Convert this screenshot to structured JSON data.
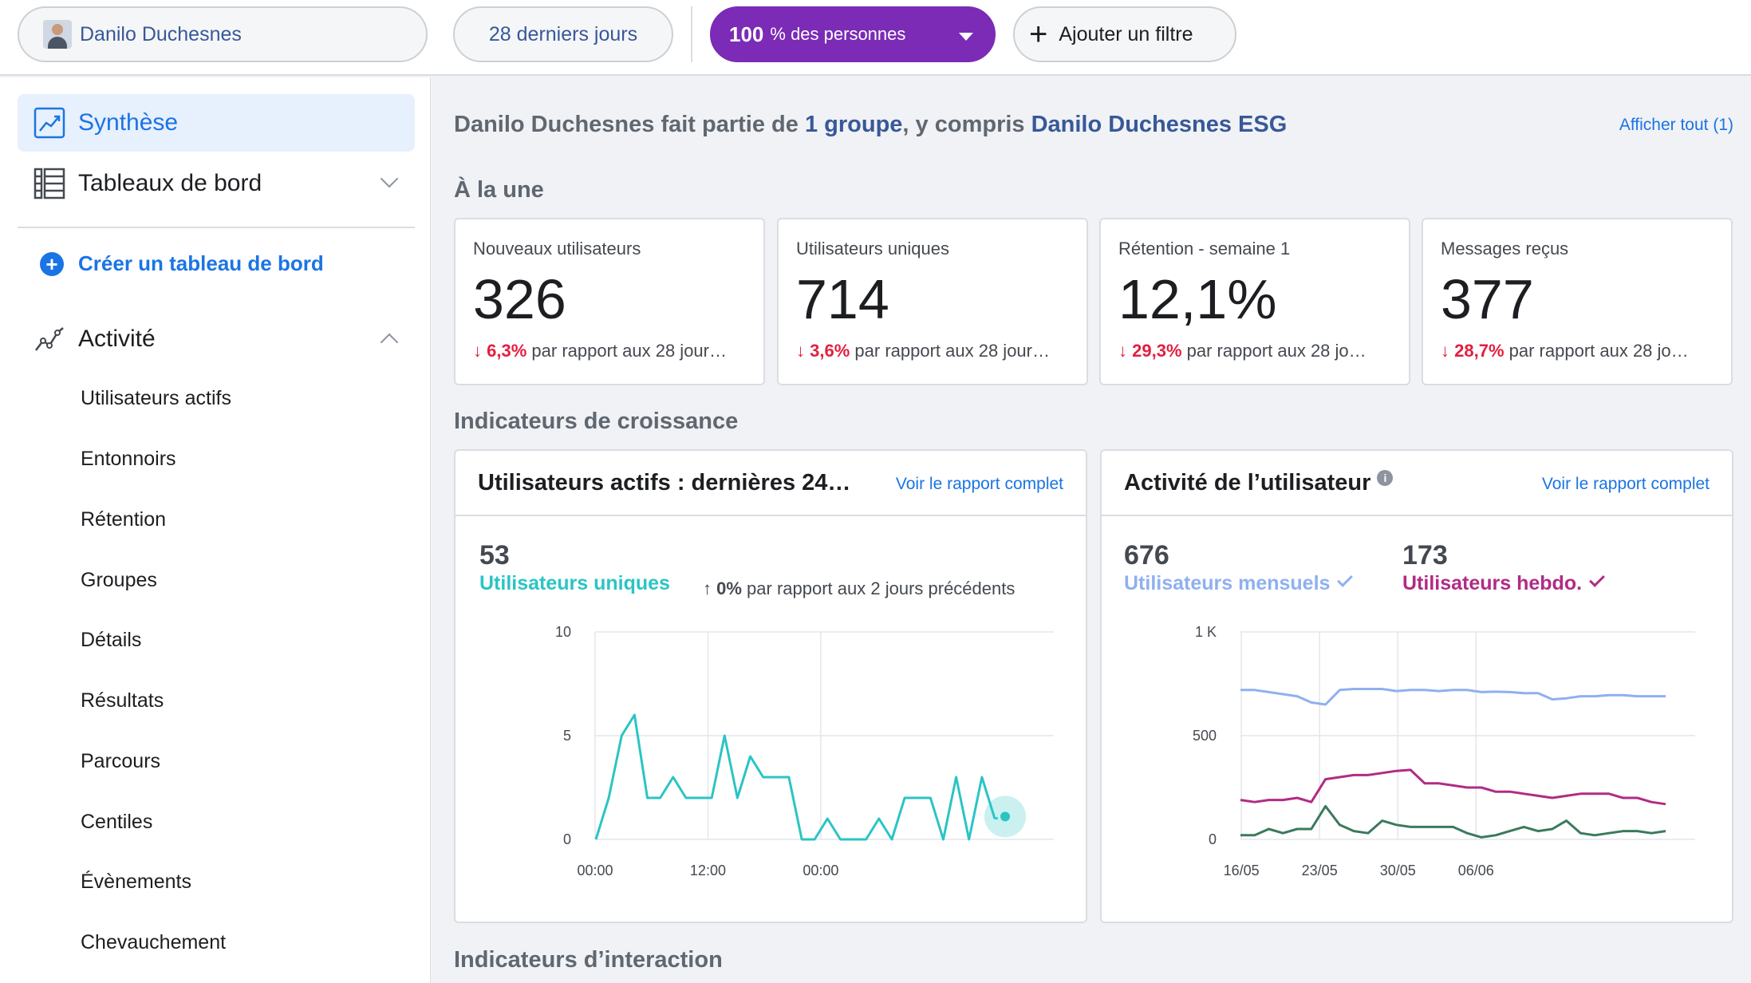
{
  "topbar": {
    "user_name": "Danilo Duchesnes",
    "date_range": "28 derniers jours",
    "people_pct": "100",
    "people_suffix": "% des personnes",
    "add_filter": "Ajouter un filtre"
  },
  "sidebar": {
    "synthese": "Synthèse",
    "tableaux": "Tableaux de bord",
    "create": "Créer un tableau de bord",
    "activite": "Activité",
    "items": [
      "Utilisateurs actifs",
      "Entonnoirs",
      "Rétention",
      "Groupes",
      "Détails",
      "Résultats",
      "Parcours",
      "Centiles",
      "Évènements",
      "Chevauchement"
    ]
  },
  "main": {
    "head_prefix": "Danilo Duchesnes fait partie de ",
    "head_link1": "1 groupe",
    "head_mid": ", y compris ",
    "head_link2": "Danilo Duchesnes ESG",
    "show_all": "Afficher tout (1)",
    "section_une": "À la une",
    "section_croissance": "Indicateurs de croissance",
    "section_interaction": "Indicateurs d’interaction"
  },
  "kpis": [
    {
      "label": "Nouveaux utilisateurs",
      "value": "326",
      "change": "6,3%",
      "rest": "par rapport aux 28 jour…"
    },
    {
      "label": "Utilisateurs uniques",
      "value": "714",
      "change": "3,6%",
      "rest": "par rapport aux 28 jour…"
    },
    {
      "label": "Rétention - semaine 1",
      "value": "12,1%",
      "change": "29,3%",
      "rest": "par rapport aux 28 jo…"
    },
    {
      "label": "Messages reçus",
      "value": "377",
      "change": "28,7%",
      "rest": "par rapport aux 28 jo…"
    }
  ],
  "card_active": {
    "title": "Utilisateurs actifs : dernières 24…",
    "link": "Voir le rapport complet",
    "count": "53",
    "series_label": "Utilisateurs uniques",
    "change_pct": "0%",
    "change_rest": "par rapport aux 2 jours précédents"
  },
  "card_activity": {
    "title": "Activité de l’utilisateur",
    "link": "Voir le rapport complet",
    "monthly_count": "676",
    "monthly_label": "Utilisateurs mensuels",
    "weekly_count": "173",
    "weekly_label": "Utilisateurs hebdo."
  },
  "colors": {
    "teal": "#2bc4c4",
    "blue": "#8fb0f0",
    "magenta": "#b12b85",
    "green": "#3a7a5c",
    "purple": "#7b2bb5",
    "red": "#e41e3f"
  },
  "chart_data": [
    {
      "type": "line",
      "x_tick_labels": [
        "00:00",
        "12:00",
        "00:00"
      ],
      "y_tick_labels": [
        "0",
        "5",
        "10"
      ],
      "ylim": [
        0,
        10
      ],
      "series": [
        {
          "name": "Utilisateurs uniques",
          "values": [
            0,
            2,
            5,
            6,
            2,
            2,
            3,
            2,
            2,
            2,
            5,
            2,
            4,
            3,
            3,
            3,
            0,
            0,
            1,
            0,
            0,
            0,
            1,
            0,
            2,
            2,
            2,
            0,
            3,
            0,
            3,
            1
          ]
        }
      ]
    },
    {
      "type": "line",
      "x_tick_labels": [
        "16/05",
        "23/05",
        "30/05",
        "06/06"
      ],
      "y_tick_labels": [
        "0",
        "500",
        "1 K"
      ],
      "ylim": [
        0,
        1000
      ],
      "series": [
        {
          "name": "Utilisateurs mensuels",
          "values": [
            720,
            720,
            710,
            700,
            690,
            660,
            650,
            720,
            725,
            725,
            725,
            715,
            720,
            720,
            715,
            720,
            720,
            710,
            712,
            710,
            705,
            705,
            675,
            680,
            690,
            690,
            695,
            695,
            690,
            690,
            690
          ]
        },
        {
          "name": "Utilisateurs hebdo.",
          "values": [
            190,
            180,
            190,
            190,
            200,
            180,
            290,
            300,
            310,
            310,
            320,
            330,
            335,
            270,
            270,
            260,
            250,
            250,
            230,
            230,
            220,
            210,
            200,
            210,
            220,
            220,
            220,
            200,
            200,
            180,
            170
          ]
        },
        {
          "name": "",
          "values": [
            20,
            20,
            50,
            30,
            50,
            50,
            160,
            70,
            40,
            30,
            90,
            70,
            60,
            60,
            60,
            60,
            30,
            10,
            20,
            40,
            60,
            40,
            50,
            90,
            30,
            20,
            30,
            40,
            40,
            30,
            40
          ]
        }
      ]
    }
  ]
}
